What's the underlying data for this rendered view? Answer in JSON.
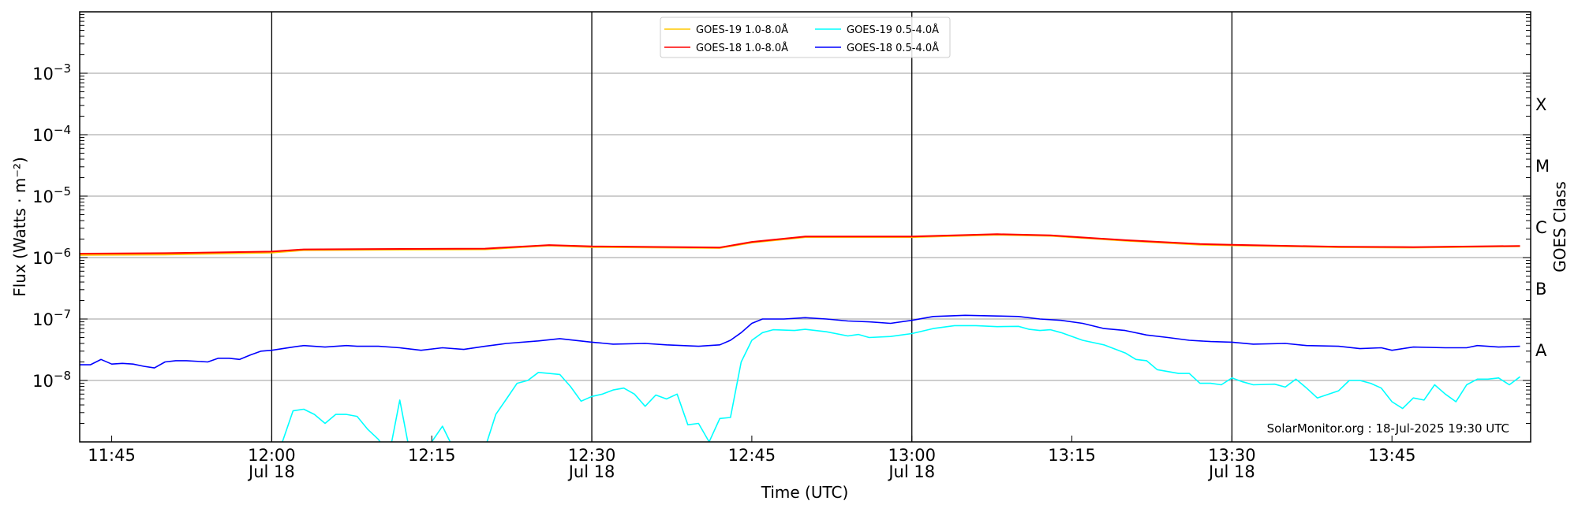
{
  "chart_data": {
    "type": "line",
    "title": "",
    "xlabel": "Time (UTC)",
    "ylabel": "Flux (Watts · m⁻²)",
    "ylabel_right": "GOES Class",
    "yscale": "log",
    "ylim": [
      1e-09,
      0.01
    ],
    "xlim": [
      "11:42",
      "13:58"
    ],
    "grid": "horizontal at decades; vertical at day-labelled ticks",
    "legend_position": "top-center",
    "credit": "SolarMonitor.org : 18-Jul-2025 19:30 UTC",
    "x_ticks": [
      {
        "t": "11:45",
        "label": "11:45",
        "date": ""
      },
      {
        "t": "12:00",
        "label": "12:00",
        "date": "Jul 18"
      },
      {
        "t": "12:15",
        "label": "12:15",
        "date": ""
      },
      {
        "t": "12:30",
        "label": "12:30",
        "date": "Jul 18"
      },
      {
        "t": "12:45",
        "label": "12:45",
        "date": ""
      },
      {
        "t": "13:00",
        "label": "13:00",
        "date": "Jul 18"
      },
      {
        "t": "13:15",
        "label": "13:15",
        "date": ""
      },
      {
        "t": "13:30",
        "label": "13:30",
        "date": "Jul 18"
      },
      {
        "t": "13:45",
        "label": "13:45",
        "date": ""
      }
    ],
    "y_ticks": [
      {
        "v": -3,
        "base": "10",
        "exp": "−3"
      },
      {
        "v": -4,
        "base": "10",
        "exp": "−4"
      },
      {
        "v": -5,
        "base": "10",
        "exp": "−5"
      },
      {
        "v": -6,
        "base": "10",
        "exp": "−6"
      },
      {
        "v": -7,
        "base": "10",
        "exp": "−7"
      },
      {
        "v": -8,
        "base": "10",
        "exp": "−8"
      }
    ],
    "goes_classes": [
      {
        "label": "X",
        "v": -3.5
      },
      {
        "label": "M",
        "v": -4.5
      },
      {
        "label": "C",
        "v": -5.5
      },
      {
        "label": "B",
        "v": -6.5
      },
      {
        "label": "A",
        "v": -7.5
      }
    ],
    "series": [
      {
        "name": "GOES-19 1.0-8.0Å",
        "color": "#ffc800",
        "points": [
          [
            "11:42",
            1.1e-06
          ],
          [
            "11:50",
            1.12e-06
          ],
          [
            "12:00",
            1.2e-06
          ],
          [
            "12:03",
            1.32e-06
          ],
          [
            "12:10",
            1.34e-06
          ],
          [
            "12:20",
            1.36e-06
          ],
          [
            "12:26",
            1.57e-06
          ],
          [
            "12:30",
            1.48e-06
          ],
          [
            "12:42",
            1.43e-06
          ],
          [
            "12:45",
            1.75e-06
          ],
          [
            "12:50",
            2.15e-06
          ],
          [
            "13:00",
            2.15e-06
          ],
          [
            "13:08",
            2.35e-06
          ],
          [
            "13:13",
            2.25e-06
          ],
          [
            "13:20",
            1.88e-06
          ],
          [
            "13:27",
            1.62e-06
          ],
          [
            "13:30",
            1.58e-06
          ],
          [
            "13:40",
            1.47e-06
          ],
          [
            "13:47",
            1.45e-06
          ],
          [
            "13:57",
            1.52e-06
          ]
        ]
      },
      {
        "name": "GOES-18 1.0-8.0Å",
        "color": "#ff0000",
        "points": [
          [
            "11:42",
            1.16e-06
          ],
          [
            "11:50",
            1.18e-06
          ],
          [
            "12:00",
            1.25e-06
          ],
          [
            "12:03",
            1.36e-06
          ],
          [
            "12:10",
            1.38e-06
          ],
          [
            "12:20",
            1.4e-06
          ],
          [
            "12:26",
            1.6e-06
          ],
          [
            "12:30",
            1.52e-06
          ],
          [
            "12:42",
            1.46e-06
          ],
          [
            "12:45",
            1.8e-06
          ],
          [
            "12:50",
            2.2e-06
          ],
          [
            "13:00",
            2.2e-06
          ],
          [
            "13:08",
            2.4e-06
          ],
          [
            "13:13",
            2.3e-06
          ],
          [
            "13:20",
            1.92e-06
          ],
          [
            "13:27",
            1.66e-06
          ],
          [
            "13:30",
            1.62e-06
          ],
          [
            "13:40",
            1.5e-06
          ],
          [
            "13:47",
            1.48e-06
          ],
          [
            "13:57",
            1.55e-06
          ]
        ]
      },
      {
        "name": "GOES-19 0.5-4.0Å",
        "color": "#00ffff",
        "points": [
          [
            "11:42",
            5e-10
          ],
          [
            "12:00",
            5e-10
          ],
          [
            "12:01",
            1e-09
          ],
          [
            "12:02",
            3.2e-09
          ],
          [
            "12:03",
            3.4e-09
          ],
          [
            "12:04",
            2.8e-09
          ],
          [
            "12:05",
            2e-09
          ],
          [
            "12:06",
            2.8e-09
          ],
          [
            "12:07",
            2.8e-09
          ],
          [
            "12:08",
            2.6e-09
          ],
          [
            "12:09",
            1.6e-09
          ],
          [
            "12:10",
            1.1e-09
          ],
          [
            "12:11",
            6e-10
          ],
          [
            "12:12",
            4.8e-09
          ],
          [
            "12:13",
            6e-10
          ],
          [
            "12:14",
            6e-10
          ],
          [
            "12:15",
            1e-09
          ],
          [
            "12:16",
            1.8e-09
          ],
          [
            "12:17",
            8e-10
          ],
          [
            "12:20",
            8e-10
          ],
          [
            "12:21",
            2.8e-09
          ],
          [
            "12:22",
            5e-09
          ],
          [
            "12:23",
            9e-09
          ],
          [
            "12:24",
            1e-08
          ],
          [
            "12:25",
            1.35e-08
          ],
          [
            "12:26",
            1.3e-08
          ],
          [
            "12:27",
            1.25e-08
          ],
          [
            "12:28",
            8e-09
          ],
          [
            "12:29",
            4.6e-09
          ],
          [
            "12:30",
            5.5e-09
          ],
          [
            "12:31",
            6e-09
          ],
          [
            "12:32",
            7e-09
          ],
          [
            "12:33",
            7.5e-09
          ],
          [
            "12:34",
            6e-09
          ],
          [
            "12:35",
            3.8e-09
          ],
          [
            "12:36",
            5.8e-09
          ],
          [
            "12:37",
            5e-09
          ],
          [
            "12:38",
            6e-09
          ],
          [
            "12:39",
            1.9e-09
          ],
          [
            "12:40",
            2e-09
          ],
          [
            "12:41",
            1e-09
          ],
          [
            "12:42",
            2.4e-09
          ],
          [
            "12:43",
            2.5e-09
          ],
          [
            "12:44",
            2e-08
          ],
          [
            "12:45",
            4.5e-08
          ],
          [
            "12:46",
            6e-08
          ],
          [
            "12:47",
            6.7e-08
          ],
          [
            "12:49",
            6.5e-08
          ],
          [
            "12:50",
            6.8e-08
          ],
          [
            "12:52",
            6.2e-08
          ],
          [
            "12:54",
            5.3e-08
          ],
          [
            "12:55",
            5.6e-08
          ],
          [
            "12:56",
            5e-08
          ],
          [
            "12:58",
            5.2e-08
          ],
          [
            "13:00",
            5.8e-08
          ],
          [
            "13:02",
            7e-08
          ],
          [
            "13:04",
            7.8e-08
          ],
          [
            "13:06",
            7.8e-08
          ],
          [
            "13:08",
            7.5e-08
          ],
          [
            "13:10",
            7.6e-08
          ],
          [
            "13:11",
            6.8e-08
          ],
          [
            "13:12",
            6.5e-08
          ],
          [
            "13:13",
            6.7e-08
          ],
          [
            "13:14",
            6e-08
          ],
          [
            "13:16",
            4.5e-08
          ],
          [
            "13:18",
            3.8e-08
          ],
          [
            "13:20",
            2.8e-08
          ],
          [
            "13:21",
            2.2e-08
          ],
          [
            "13:22",
            2.1e-08
          ],
          [
            "13:23",
            1.5e-08
          ],
          [
            "13:25",
            1.3e-08
          ],
          [
            "13:26",
            1.3e-08
          ],
          [
            "13:27",
            9e-09
          ],
          [
            "13:28",
            9e-09
          ],
          [
            "13:29",
            8.5e-09
          ],
          [
            "13:30",
            1.1e-08
          ],
          [
            "13:31",
            9.5e-09
          ],
          [
            "13:32",
            8.5e-09
          ],
          [
            "13:34",
            8.7e-09
          ],
          [
            "13:35",
            7.8e-09
          ],
          [
            "13:36",
            1.05e-08
          ],
          [
            "13:37",
            7.5e-09
          ],
          [
            "13:38",
            5.2e-09
          ],
          [
            "13:40",
            6.8e-09
          ],
          [
            "13:41",
            1e-08
          ],
          [
            "13:42",
            1e-08
          ],
          [
            "13:43",
            9e-09
          ],
          [
            "13:44",
            7.5e-09
          ],
          [
            "13:45",
            4.5e-09
          ],
          [
            "13:46",
            3.5e-09
          ],
          [
            "13:47",
            5.2e-09
          ],
          [
            "13:48",
            4.8e-09
          ],
          [
            "13:49",
            8.5e-09
          ],
          [
            "13:50",
            6e-09
          ],
          [
            "13:51",
            4.5e-09
          ],
          [
            "13:52",
            8.5e-09
          ],
          [
            "13:53",
            1.05e-08
          ],
          [
            "13:54",
            1.05e-08
          ],
          [
            "13:55",
            1.1e-08
          ],
          [
            "13:56",
            8.5e-09
          ],
          [
            "13:57",
            1.15e-08
          ]
        ]
      },
      {
        "name": "GOES-18 0.5-4.0Å",
        "color": "#0000ff",
        "points": [
          [
            "11:42",
            1.8e-08
          ],
          [
            "11:43",
            1.8e-08
          ],
          [
            "11:44",
            2.2e-08
          ],
          [
            "11:45",
            1.85e-08
          ],
          [
            "11:46",
            1.9e-08
          ],
          [
            "11:47",
            1.85e-08
          ],
          [
            "11:48",
            1.7e-08
          ],
          [
            "11:49",
            1.6e-08
          ],
          [
            "11:50",
            2e-08
          ],
          [
            "11:51",
            2.1e-08
          ],
          [
            "11:52",
            2.1e-08
          ],
          [
            "11:54",
            2e-08
          ],
          [
            "11:55",
            2.3e-08
          ],
          [
            "11:56",
            2.3e-08
          ],
          [
            "11:57",
            2.2e-08
          ],
          [
            "11:58",
            2.6e-08
          ],
          [
            "11:59",
            3e-08
          ],
          [
            "12:00",
            3.1e-08
          ],
          [
            "12:02",
            3.5e-08
          ],
          [
            "12:03",
            3.7e-08
          ],
          [
            "12:05",
            3.5e-08
          ],
          [
            "12:07",
            3.7e-08
          ],
          [
            "12:08",
            3.6e-08
          ],
          [
            "12:10",
            3.6e-08
          ],
          [
            "12:12",
            3.4e-08
          ],
          [
            "12:14",
            3.1e-08
          ],
          [
            "12:16",
            3.4e-08
          ],
          [
            "12:18",
            3.2e-08
          ],
          [
            "12:20",
            3.6e-08
          ],
          [
            "12:22",
            4e-08
          ],
          [
            "12:25",
            4.4e-08
          ],
          [
            "12:27",
            4.8e-08
          ],
          [
            "12:30",
            4.2e-08
          ],
          [
            "12:32",
            3.9e-08
          ],
          [
            "12:35",
            4e-08
          ],
          [
            "12:37",
            3.8e-08
          ],
          [
            "12:40",
            3.6e-08
          ],
          [
            "12:42",
            3.8e-08
          ],
          [
            "12:43",
            4.5e-08
          ],
          [
            "12:44",
            6e-08
          ],
          [
            "12:45",
            8.5e-08
          ],
          [
            "12:46",
            1e-07
          ],
          [
            "12:48",
            1e-07
          ],
          [
            "12:50",
            1.05e-07
          ],
          [
            "12:52",
            1e-07
          ],
          [
            "12:54",
            9.3e-08
          ],
          [
            "12:56",
            9e-08
          ],
          [
            "12:58",
            8.5e-08
          ],
          [
            "13:00",
            9.5e-08
          ],
          [
            "13:02",
            1.1e-07
          ],
          [
            "13:05",
            1.15e-07
          ],
          [
            "13:08",
            1.12e-07
          ],
          [
            "13:10",
            1.1e-07
          ],
          [
            "13:12",
            1e-07
          ],
          [
            "13:14",
            9.5e-08
          ],
          [
            "13:16",
            8.5e-08
          ],
          [
            "13:18",
            7e-08
          ],
          [
            "13:20",
            6.5e-08
          ],
          [
            "13:22",
            5.5e-08
          ],
          [
            "13:24",
            5e-08
          ],
          [
            "13:26",
            4.5e-08
          ],
          [
            "13:28",
            4.3e-08
          ],
          [
            "13:30",
            4.2e-08
          ],
          [
            "13:32",
            3.9e-08
          ],
          [
            "13:35",
            4e-08
          ],
          [
            "13:37",
            3.7e-08
          ],
          [
            "13:40",
            3.6e-08
          ],
          [
            "13:42",
            3.3e-08
          ],
          [
            "13:44",
            3.4e-08
          ],
          [
            "13:45",
            3.1e-08
          ],
          [
            "13:47",
            3.5e-08
          ],
          [
            "13:50",
            3.4e-08
          ],
          [
            "13:52",
            3.4e-08
          ],
          [
            "13:53",
            3.7e-08
          ],
          [
            "13:55",
            3.5e-08
          ],
          [
            "13:57",
            3.6e-08
          ]
        ]
      }
    ]
  }
}
